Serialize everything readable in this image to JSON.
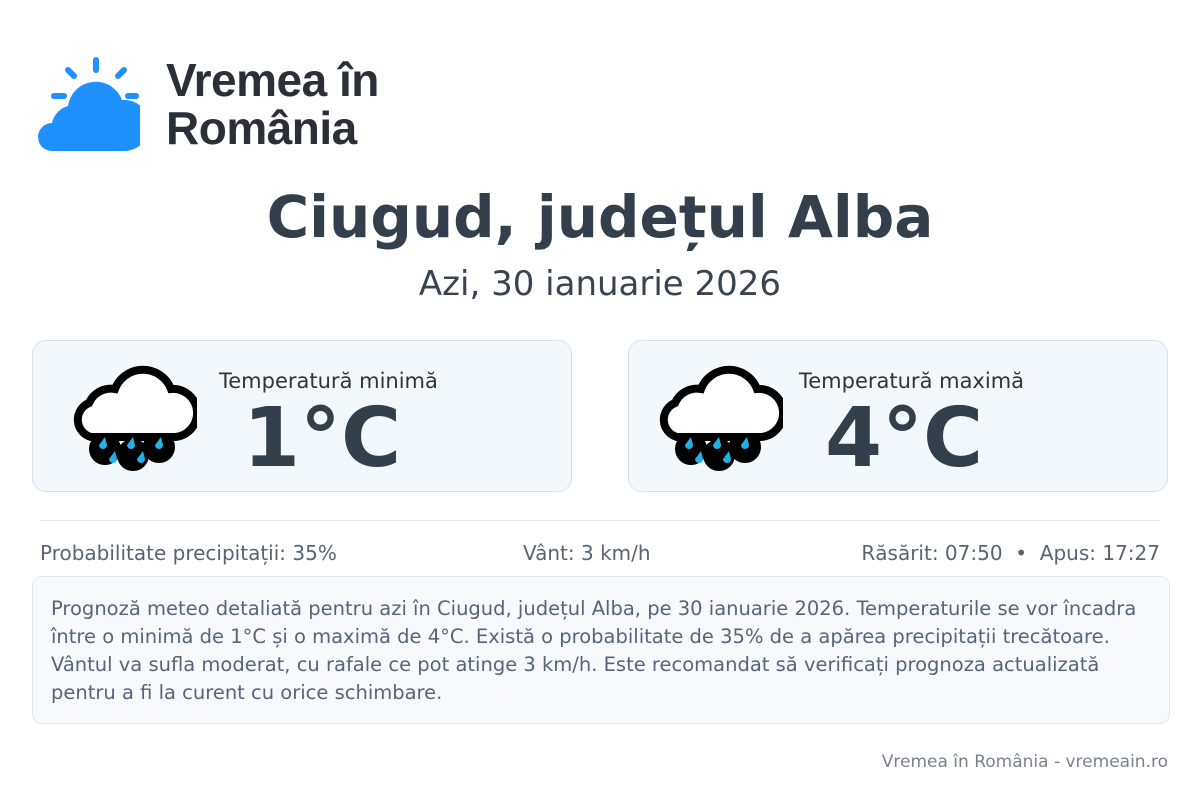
{
  "brand": {
    "name_line1": "Vremea în",
    "name_line2": "România",
    "icon": "sun-cloud-icon",
    "color": "#1e90ff"
  },
  "header": {
    "title": "Ciugud, județul Alba",
    "subtitle": "Azi, 30 ianuarie 2026"
  },
  "cards": [
    {
      "label": "Temperatură minimă",
      "value": "1°C",
      "icon": "rain-cloud-icon"
    },
    {
      "label": "Temperatură maximă",
      "value": "4°C",
      "icon": "rain-cloud-icon"
    }
  ],
  "stats": {
    "precip": "Probabilitate precipitații: 35%",
    "wind": "Vânt: 3 km/h",
    "sun": "Răsărit: 07:50  •  Apus: 17:27"
  },
  "description": "Prognoză meteo detaliată pentru azi în Ciugud, județul Alba, pe 30 ianuarie 2026. Temperaturile se vor încadra între o minimă de 1°C și o maximă de 4°C. Există o probabilitate de 35% de a apărea precipitații trecătoare. Vântul va sufla moderat, cu rafale ce pot atinge 3 km/h. Este recomandat să verificați prognoza actualizată pentru a fi la curent cu orice schimbare.",
  "footer": "Vremea în România - vremeain.ro"
}
